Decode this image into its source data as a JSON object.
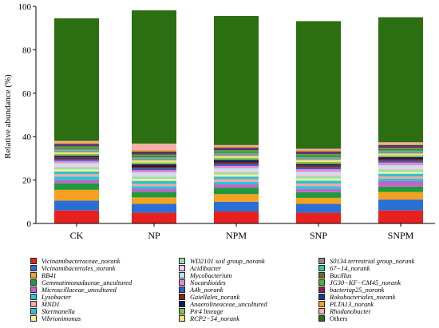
{
  "chart_data": {
    "type": "bar",
    "stacked": true,
    "ylabel": "Relative abundance (%)",
    "xlabel": "",
    "ylim": [
      0,
      100
    ],
    "yticks": [
      0,
      20,
      40,
      60,
      80,
      100
    ],
    "grid": false,
    "legend_position": "bottom",
    "categories": [
      "CK",
      "NP",
      "NPM",
      "SNP",
      "SNPM"
    ],
    "series": [
      {
        "name": "Vicinamibacteraceae_norank",
        "color": "#e8201e",
        "values": [
          6.0,
          5.0,
          5.5,
          5.0,
          6.0
        ]
      },
      {
        "name": "Vicinamibacterales_norank",
        "color": "#2a6fd6",
        "values": [
          4.5,
          4.0,
          4.5,
          4.0,
          5.0
        ]
      },
      {
        "name": "RB41",
        "color": "#f5a020",
        "values": [
          5.0,
          3.0,
          3.5,
          2.8,
          3.5
        ]
      },
      {
        "name": "Gemmatimonadaceae_uncultured",
        "color": "#1f9a3c",
        "values": [
          3.0,
          2.5,
          3.0,
          2.6,
          2.5
        ]
      },
      {
        "name": "Microscillaceae_uncultured",
        "color": "#c264c8",
        "values": [
          1.5,
          1.5,
          1.5,
          1.5,
          2.5
        ]
      },
      {
        "name": "Lysobacter",
        "color": "#27c6d8",
        "values": [
          1.5,
          1.2,
          1.2,
          1.3,
          1.2
        ]
      },
      {
        "name": "MND1",
        "color": "#f4a8a0",
        "values": [
          1.2,
          1.0,
          1.2,
          1.2,
          1.0
        ]
      },
      {
        "name": "Skermanella",
        "color": "#2fc0d0",
        "values": [
          1.2,
          1.4,
          1.2,
          1.3,
          1.2
        ]
      },
      {
        "name": "Vibrionimonas",
        "color": "#f0ee9a",
        "values": [
          1.0,
          1.0,
          1.0,
          1.0,
          1.0
        ]
      },
      {
        "name": "WD2101 soil group_norank",
        "color": "#96e0a8",
        "values": [
          1.0,
          1.0,
          1.0,
          1.2,
          1.0
        ]
      },
      {
        "name": "Acidibacter",
        "color": "#f6c8e8",
        "values": [
          0.9,
          0.9,
          0.9,
          0.9,
          0.9
        ]
      },
      {
        "name": "Mycobacterium",
        "color": "#b8e6f2",
        "values": [
          1.0,
          1.0,
          1.0,
          1.0,
          1.0
        ]
      },
      {
        "name": "Nocardioides",
        "color": "#f084cc",
        "values": [
          1.0,
          1.0,
          1.0,
          1.2,
          1.2
        ]
      },
      {
        "name": "A4b_norank",
        "color": "#2a62c8",
        "values": [
          0.8,
          0.8,
          0.8,
          0.8,
          0.8
        ]
      },
      {
        "name": "Gaiellales_norank",
        "color": "#8a2618",
        "values": [
          0.8,
          0.8,
          0.8,
          0.8,
          0.8
        ]
      },
      {
        "name": "Anaerolineaceae_uncultured",
        "color": "#1a1a5c",
        "values": [
          0.8,
          1.2,
          1.2,
          0.8,
          1.0
        ]
      },
      {
        "name": "Pir4 lineage",
        "color": "#7cc64c",
        "values": [
          0.8,
          0.8,
          0.9,
          0.9,
          0.8
        ]
      },
      {
        "name": "RCP2-54_norank",
        "color": "#f2e080",
        "values": [
          0.8,
          1.0,
          0.9,
          1.0,
          0.8
        ]
      },
      {
        "name": "S0134 terrestrial group_norank",
        "color": "#8e8e8e",
        "values": [
          0.7,
          0.7,
          0.7,
          0.7,
          0.7
        ]
      },
      {
        "name": "67-14_norank",
        "color": "#3cc2a0",
        "values": [
          0.7,
          0.7,
          0.7,
          0.7,
          0.7
        ]
      },
      {
        "name": "Bacillus",
        "color": "#6b6b2a",
        "values": [
          0.6,
          0.7,
          0.6,
          0.7,
          0.6
        ]
      },
      {
        "name": "JG30-KF-CM45_norank",
        "color": "#3fb83a",
        "values": [
          0.6,
          0.6,
          0.6,
          0.6,
          0.6
        ]
      },
      {
        "name": "bacteriap25_norank",
        "color": "#8a1c5a",
        "values": [
          0.6,
          0.7,
          0.6,
          0.6,
          0.7
        ]
      },
      {
        "name": "Rokubacteriales_norank",
        "color": "#1c3a8c",
        "values": [
          0.6,
          0.6,
          0.6,
          0.6,
          0.6
        ]
      },
      {
        "name": "PLTA13_norank",
        "color": "#f0a028",
        "values": [
          0.7,
          0.7,
          0.6,
          0.6,
          0.6
        ]
      },
      {
        "name": "Rhodanobacter",
        "color": "#f4b0a8",
        "values": [
          0.7,
          3.0,
          0.6,
          0.6,
          0.7
        ]
      },
      {
        "name": "Others",
        "color": "#2c6e12",
        "values": [
          56.5,
          61.4,
          59.5,
          58.8,
          57.6
        ]
      }
    ]
  },
  "legend_labels": {
    "67-14_norank": "67−14_norank",
    "JG30-KF-CM45_norank": "JG30−KF−CM45_norank",
    "RCP2-54_norank": "RCP2−54_norank"
  },
  "legend_upright": [
    "Others"
  ]
}
